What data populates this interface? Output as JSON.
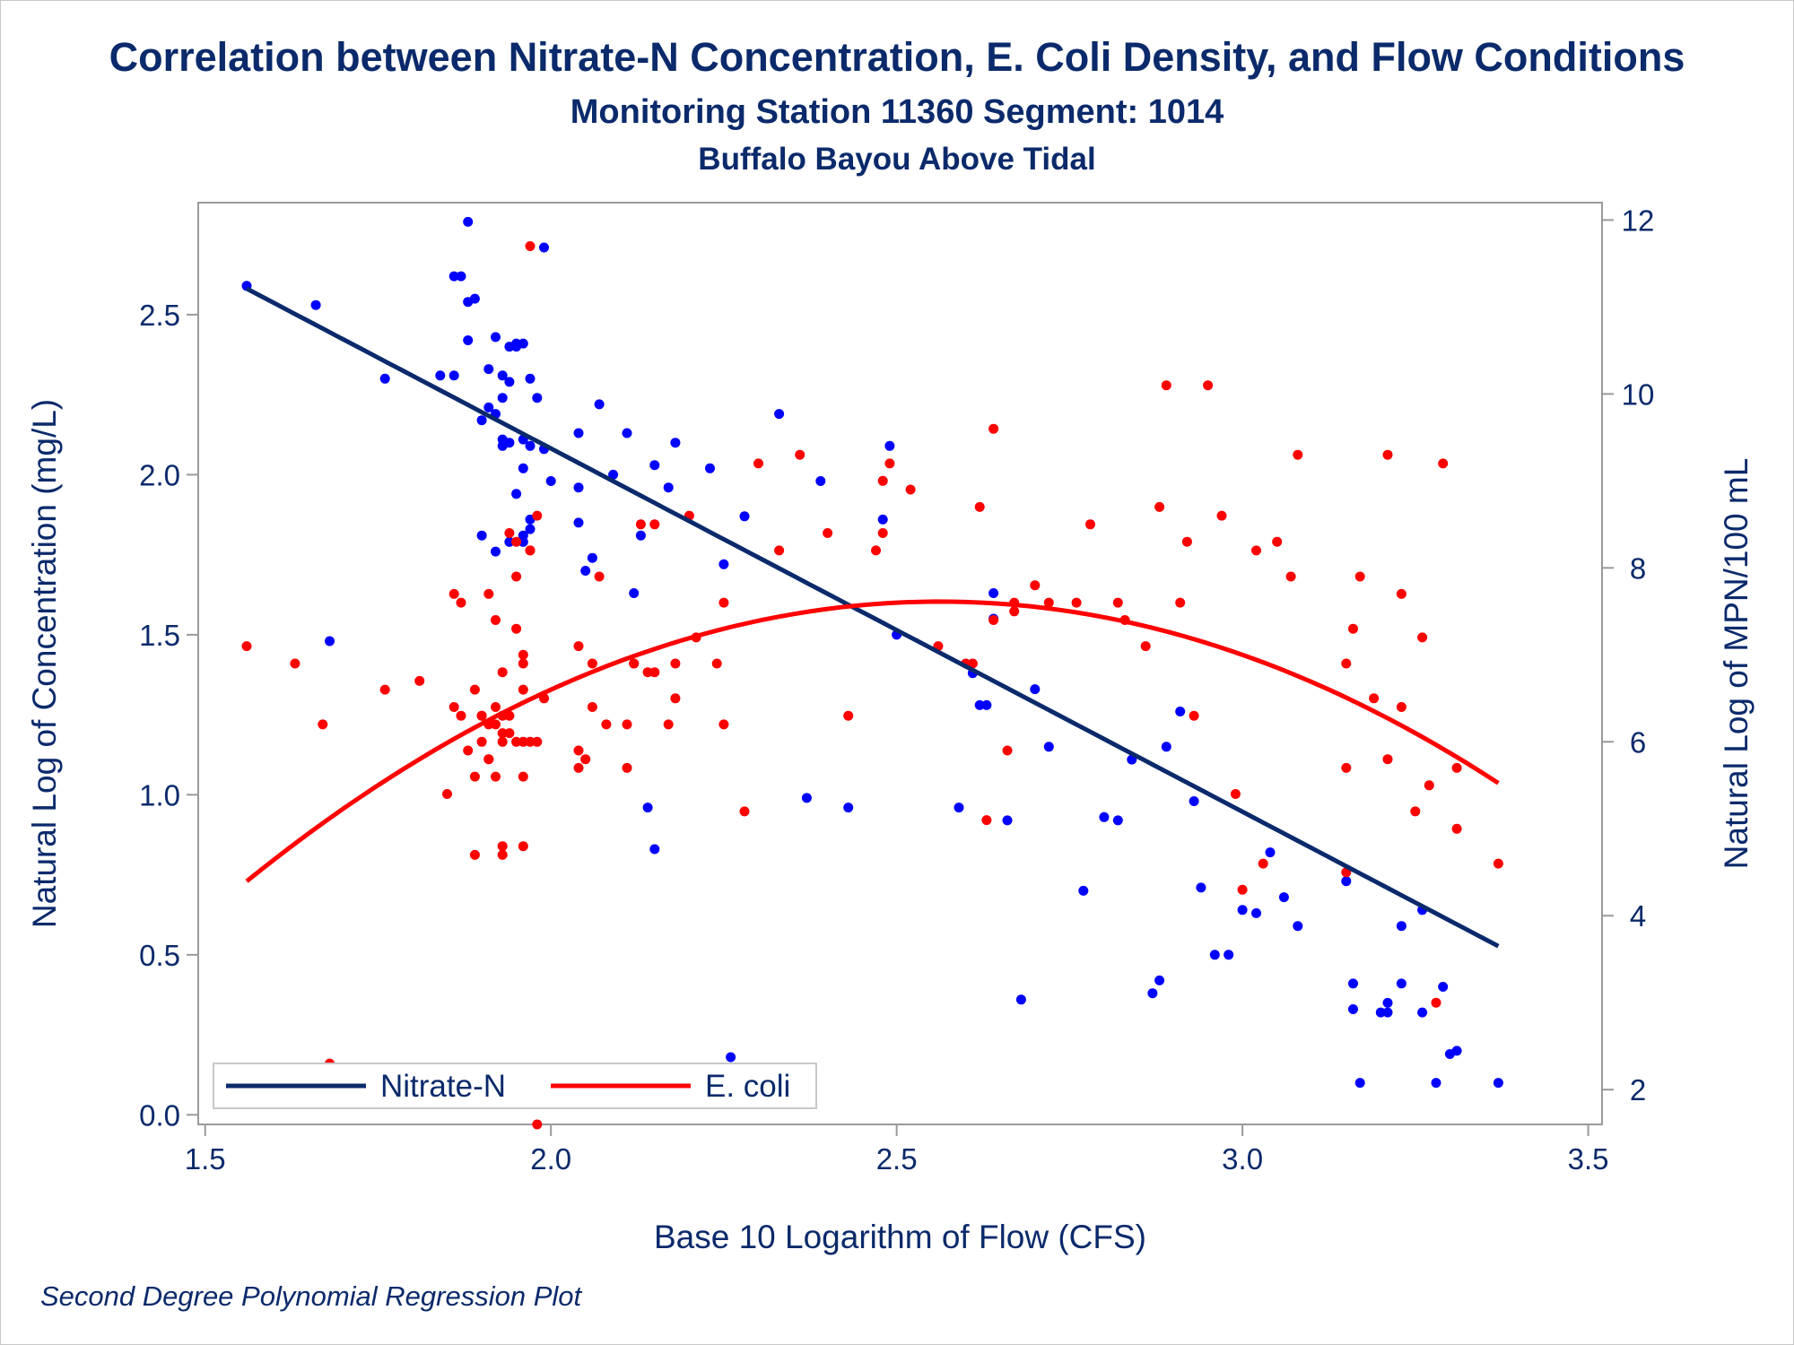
{
  "colors": {
    "nitrate": "#0000ff",
    "ecoli": "#ff0000",
    "nitrate_line": "#0b2a6b",
    "ecoli_line": "#ff0000",
    "text": "#0b2a6b"
  },
  "chart_data": {
    "type": "scatter",
    "title": "Correlation between Nitrate-N Concentration, E. Coli Density, and Flow Conditions",
    "subtitle": "Monitoring Station 11360 Segment: 1014",
    "subtitle2": "Buffalo Bayou Above Tidal",
    "footnote": "Second Degree Polynomial Regression Plot",
    "xlabel": "Base 10 Logarithm of Flow (CFS)",
    "ylabel": "Natural Log of Concentration (mg/L)",
    "y2label": "Natural Log of MPN/100 mL",
    "xlim": [
      1.49,
      3.52
    ],
    "ylim": [
      -0.03,
      2.85
    ],
    "y2lim": [
      1.6,
      12.2
    ],
    "x_ticks": [
      "1.5",
      "2.0",
      "2.5",
      "3.0",
      "3.5"
    ],
    "y_ticks": [
      "0.0",
      "0.5",
      "1.0",
      "1.5",
      "2.0",
      "2.5"
    ],
    "y2_ticks": [
      "2",
      "4",
      "6",
      "8",
      "10",
      "12"
    ],
    "legend_position": "bottom-left",
    "series": [
      {
        "name": "Nitrate-N",
        "axis": "left",
        "points": [
          [
            1.56,
            2.59
          ],
          [
            1.66,
            2.53
          ],
          [
            1.68,
            1.48
          ],
          [
            1.76,
            2.3
          ],
          [
            1.84,
            2.31
          ],
          [
            1.86,
            2.31
          ],
          [
            1.86,
            2.62
          ],
          [
            1.87,
            2.62
          ],
          [
            1.88,
            2.79
          ],
          [
            1.88,
            2.54
          ],
          [
            1.88,
            2.42
          ],
          [
            1.89,
            2.55
          ],
          [
            1.9,
            2.17
          ],
          [
            1.9,
            1.81
          ],
          [
            1.91,
            2.33
          ],
          [
            1.91,
            2.21
          ],
          [
            1.92,
            2.43
          ],
          [
            1.92,
            1.76
          ],
          [
            1.92,
            2.19
          ],
          [
            1.93,
            2.31
          ],
          [
            1.93,
            2.24
          ],
          [
            1.93,
            2.11
          ],
          [
            1.93,
            2.09
          ],
          [
            1.94,
            2.4
          ],
          [
            1.94,
            2.29
          ],
          [
            1.94,
            2.1
          ],
          [
            1.94,
            1.79
          ],
          [
            1.95,
            2.4
          ],
          [
            1.95,
            2.41
          ],
          [
            1.95,
            1.94
          ],
          [
            1.96,
            2.41
          ],
          [
            1.96,
            1.81
          ],
          [
            1.96,
            1.79
          ],
          [
            1.96,
            2.11
          ],
          [
            1.96,
            2.02
          ],
          [
            1.97,
            2.3
          ],
          [
            1.97,
            1.86
          ],
          [
            1.97,
            2.09
          ],
          [
            1.97,
            1.83
          ],
          [
            1.98,
            2.24
          ],
          [
            1.99,
            2.08
          ],
          [
            1.99,
            2.71
          ],
          [
            2.0,
            1.98
          ],
          [
            2.04,
            2.13
          ],
          [
            2.04,
            1.96
          ],
          [
            2.04,
            1.85
          ],
          [
            2.05,
            1.7
          ],
          [
            2.06,
            1.74
          ],
          [
            2.07,
            2.22
          ],
          [
            2.09,
            2.0
          ],
          [
            2.11,
            2.13
          ],
          [
            2.12,
            1.63
          ],
          [
            2.13,
            1.81
          ],
          [
            2.14,
            0.96
          ],
          [
            2.15,
            2.03
          ],
          [
            2.15,
            0.83
          ],
          [
            2.17,
            1.96
          ],
          [
            2.18,
            2.1
          ],
          [
            2.23,
            2.02
          ],
          [
            2.25,
            1.72
          ],
          [
            2.26,
            0.18
          ],
          [
            2.28,
            1.87
          ],
          [
            2.33,
            2.19
          ],
          [
            2.37,
            0.99
          ],
          [
            2.39,
            1.98
          ],
          [
            2.43,
            0.96
          ],
          [
            2.48,
            1.86
          ],
          [
            2.49,
            2.09
          ],
          [
            2.5,
            1.5
          ],
          [
            2.59,
            0.96
          ],
          [
            2.61,
            1.38
          ],
          [
            2.62,
            1.28
          ],
          [
            2.63,
            1.28
          ],
          [
            2.64,
            1.63
          ],
          [
            2.64,
            1.55
          ],
          [
            2.66,
            0.92
          ],
          [
            2.68,
            0.36
          ],
          [
            2.7,
            1.33
          ],
          [
            2.72,
            1.15
          ],
          [
            2.77,
            0.7
          ],
          [
            2.8,
            0.93
          ],
          [
            2.82,
            0.92
          ],
          [
            2.84,
            1.11
          ],
          [
            2.87,
            0.38
          ],
          [
            2.88,
            0.42
          ],
          [
            2.89,
            1.15
          ],
          [
            2.91,
            1.26
          ],
          [
            2.93,
            0.98
          ],
          [
            2.94,
            0.71
          ],
          [
            2.96,
            0.5
          ],
          [
            2.98,
            0.5
          ],
          [
            3.0,
            0.64
          ],
          [
            3.02,
            0.63
          ],
          [
            3.04,
            0.82
          ],
          [
            3.06,
            0.68
          ],
          [
            3.08,
            0.59
          ],
          [
            3.15,
            0.73
          ],
          [
            3.16,
            0.33
          ],
          [
            3.16,
            0.41
          ],
          [
            3.17,
            0.1
          ],
          [
            3.2,
            0.32
          ],
          [
            3.21,
            0.35
          ],
          [
            3.21,
            0.32
          ],
          [
            3.23,
            0.59
          ],
          [
            3.23,
            0.41
          ],
          [
            3.26,
            0.64
          ],
          [
            3.26,
            0.32
          ],
          [
            3.28,
            0.1
          ],
          [
            3.29,
            0.4
          ],
          [
            3.3,
            0.19
          ],
          [
            3.31,
            0.2
          ],
          [
            3.37,
            0.1
          ]
        ]
      },
      {
        "name": "E. coli",
        "axis": "right",
        "points": [
          [
            1.56,
            7.1
          ],
          [
            1.63,
            6.9
          ],
          [
            1.67,
            6.2
          ],
          [
            1.68,
            2.3
          ],
          [
            1.76,
            6.6
          ],
          [
            1.81,
            6.7
          ],
          [
            1.85,
            5.4
          ],
          [
            1.86,
            7.7
          ],
          [
            1.86,
            6.4
          ],
          [
            1.87,
            6.3
          ],
          [
            1.87,
            7.6
          ],
          [
            1.88,
            5.9
          ],
          [
            1.89,
            6.6
          ],
          [
            1.89,
            5.6
          ],
          [
            1.89,
            4.7
          ],
          [
            1.9,
            6.3
          ],
          [
            1.9,
            6.0
          ],
          [
            1.9,
            6.3
          ],
          [
            1.91,
            7.7
          ],
          [
            1.91,
            5.8
          ],
          [
            1.91,
            6.2
          ],
          [
            1.91,
            5.8
          ],
          [
            1.92,
            5.6
          ],
          [
            1.92,
            7.4
          ],
          [
            1.92,
            6.4
          ],
          [
            1.92,
            6.2
          ],
          [
            1.93,
            6.3
          ],
          [
            1.93,
            6.1
          ],
          [
            1.93,
            6.0
          ],
          [
            1.93,
            6.8
          ],
          [
            1.93,
            4.8
          ],
          [
            1.93,
            4.7
          ],
          [
            1.94,
            8.4
          ],
          [
            1.94,
            6.1
          ],
          [
            1.94,
            6.3
          ],
          [
            1.95,
            8.3
          ],
          [
            1.95,
            7.9
          ],
          [
            1.95,
            6.0
          ],
          [
            1.95,
            7.3
          ],
          [
            1.96,
            7.0
          ],
          [
            1.96,
            6.9
          ],
          [
            1.96,
            4.8
          ],
          [
            1.96,
            6.0
          ],
          [
            1.96,
            5.6
          ],
          [
            1.96,
            6.6
          ],
          [
            1.97,
            11.7
          ],
          [
            1.97,
            6.0
          ],
          [
            1.97,
            8.2
          ],
          [
            1.97,
            8.2
          ],
          [
            1.98,
            6.0
          ],
          [
            1.98,
            8.6
          ],
          [
            1.98,
            1.6
          ],
          [
            1.99,
            6.5
          ],
          [
            2.04,
            7.1
          ],
          [
            2.04,
            5.9
          ],
          [
            2.04,
            5.7
          ],
          [
            2.05,
            5.8
          ],
          [
            2.06,
            6.4
          ],
          [
            2.06,
            6.9
          ],
          [
            2.07,
            7.9
          ],
          [
            2.08,
            6.2
          ],
          [
            2.11,
            5.7
          ],
          [
            2.11,
            6.2
          ],
          [
            2.12,
            6.9
          ],
          [
            2.12,
            6.9
          ],
          [
            2.13,
            8.5
          ],
          [
            2.14,
            6.8
          ],
          [
            2.15,
            8.5
          ],
          [
            2.15,
            6.8
          ],
          [
            2.17,
            6.2
          ],
          [
            2.18,
            6.5
          ],
          [
            2.18,
            6.9
          ],
          [
            2.2,
            8.6
          ],
          [
            2.21,
            7.2
          ],
          [
            2.24,
            6.9
          ],
          [
            2.25,
            7.6
          ],
          [
            2.25,
            6.2
          ],
          [
            2.28,
            5.2
          ],
          [
            2.3,
            9.2
          ],
          [
            2.33,
            8.2
          ],
          [
            2.36,
            9.3
          ],
          [
            2.4,
            8.4
          ],
          [
            2.43,
            6.3
          ],
          [
            2.47,
            8.2
          ],
          [
            2.48,
            9.0
          ],
          [
            2.48,
            8.4
          ],
          [
            2.49,
            9.2
          ],
          [
            2.52,
            8.9
          ],
          [
            2.56,
            7.1
          ],
          [
            2.6,
            6.9
          ],
          [
            2.61,
            6.9
          ],
          [
            2.62,
            8.7
          ],
          [
            2.63,
            5.1
          ],
          [
            2.64,
            9.6
          ],
          [
            2.64,
            7.4
          ],
          [
            2.66,
            5.9
          ],
          [
            2.67,
            7.5
          ],
          [
            2.67,
            7.6
          ],
          [
            2.7,
            7.8
          ],
          [
            2.72,
            7.6
          ],
          [
            2.76,
            7.6
          ],
          [
            2.78,
            8.5
          ],
          [
            2.82,
            7.6
          ],
          [
            2.83,
            7.4
          ],
          [
            2.86,
            7.1
          ],
          [
            2.88,
            8.7
          ],
          [
            2.89,
            10.1
          ],
          [
            2.91,
            7.6
          ],
          [
            2.92,
            8.3
          ],
          [
            2.93,
            6.3
          ],
          [
            2.95,
            10.1
          ],
          [
            2.97,
            8.6
          ],
          [
            2.99,
            5.4
          ],
          [
            3.0,
            4.3
          ],
          [
            3.02,
            8.2
          ],
          [
            3.03,
            4.6
          ],
          [
            3.05,
            8.3
          ],
          [
            3.07,
            7.9
          ],
          [
            3.08,
            9.3
          ],
          [
            3.15,
            4.5
          ],
          [
            3.15,
            6.9
          ],
          [
            3.15,
            5.7
          ],
          [
            3.16,
            7.3
          ],
          [
            3.17,
            7.9
          ],
          [
            3.19,
            6.5
          ],
          [
            3.21,
            5.8
          ],
          [
            3.21,
            9.3
          ],
          [
            3.23,
            6.4
          ],
          [
            3.23,
            7.7
          ],
          [
            3.25,
            5.2
          ],
          [
            3.26,
            7.2
          ],
          [
            3.27,
            5.5
          ],
          [
            3.28,
            3.0
          ],
          [
            3.29,
            9.2
          ],
          [
            3.31,
            5.0
          ],
          [
            3.31,
            5.7
          ],
          [
            3.37,
            4.6
          ]
        ]
      }
    ],
    "fits": [
      {
        "name": "Nitrate-N",
        "axis": "left",
        "range": [
          1.56,
          3.37
        ],
        "coef": [
          4.352,
          -1.135,
          0.0
        ]
      },
      {
        "name": "E. coli",
        "axis": "right",
        "range": [
          1.56,
          3.37
        ],
        "coef": [
          -13.4,
          16.4,
          -3.2
        ]
      }
    ]
  }
}
